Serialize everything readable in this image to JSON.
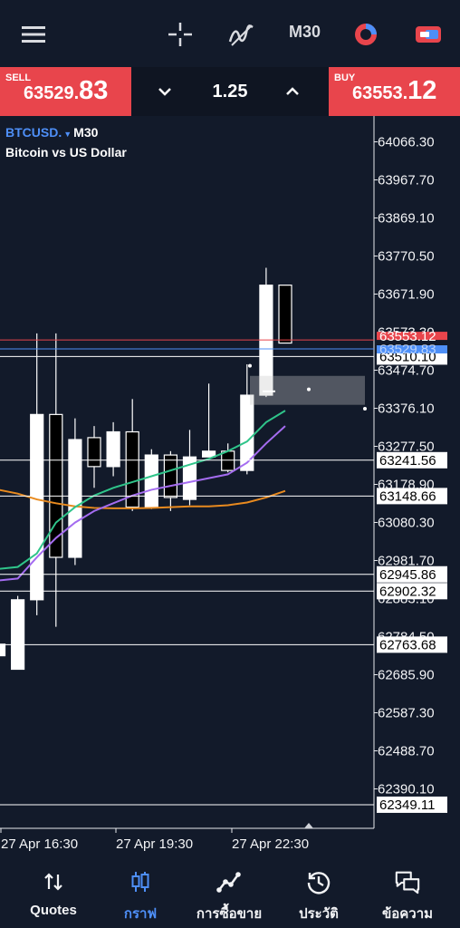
{
  "toolbar": {
    "menu_icon": "hamburger-menu-icon",
    "crosshair_icon": "crosshair-icon",
    "indicator_icon": "indicator-icon",
    "timeframe": "M30",
    "objects_icon": "objects-icon",
    "trade_icon": "trade-icon"
  },
  "trade": {
    "sell_label": "SELL",
    "sell_price_small": "63529.",
    "sell_price_big": "83",
    "buy_label": "BUY",
    "buy_price_small": "63553.",
    "buy_price_big": "12",
    "lot": "1.25"
  },
  "chart": {
    "symbol": "BTCUSD.",
    "timeframe": "M30",
    "description": "Bitcoin vs US Dollar"
  },
  "colors": {
    "background": "#121a2a",
    "sell": "#e8454c",
    "buy": "#e8454c",
    "accent": "#4e8ff7",
    "ma_green": "#2fc48a",
    "ma_purple": "#a46cf0",
    "ma_orange": "#e88a1f",
    "bid_line": "#e8454c",
    "ask_line": "#4e8ff7"
  },
  "chart_data": {
    "type": "candlestick",
    "symbol": "BTCUSD.",
    "timeframe": "M30",
    "ylim": [
      62300,
      64120
    ],
    "price_ticks": [
      "64066.30",
      "63967.70",
      "63869.10",
      "63770.50",
      "63671.90",
      "63474.70",
      "63376.10",
      "63277.50",
      "63178.90",
      "63080.30",
      "62981.70",
      "62685.90",
      "62587.30",
      "62488.70",
      "62390.10"
    ],
    "partially_hidden_ticks": [
      "63573.30",
      "62883.10",
      "62784.50"
    ],
    "time_labels": [
      "27 Apr 16:30",
      "27 Apr 19:30",
      "27 Apr 22:30"
    ],
    "candles": [
      {
        "o": 62735,
        "h": 62775,
        "l": 62700,
        "c": 62765
      },
      {
        "o": 62700,
        "h": 62890,
        "l": 62700,
        "c": 62880
      },
      {
        "o": 62880,
        "h": 63570,
        "l": 62840,
        "c": 63360
      },
      {
        "o": 63360,
        "h": 63570,
        "l": 62810,
        "c": 62990
      },
      {
        "o": 62990,
        "h": 63350,
        "l": 62970,
        "c": 63295
      },
      {
        "o": 63300,
        "h": 63330,
        "l": 63170,
        "c": 63225
      },
      {
        "o": 63225,
        "h": 63340,
        "l": 63200,
        "c": 63315
      },
      {
        "o": 63315,
        "h": 63400,
        "l": 63110,
        "c": 63120
      },
      {
        "o": 63120,
        "h": 63270,
        "l": 63115,
        "c": 63255
      },
      {
        "o": 63255,
        "h": 63265,
        "l": 63110,
        "c": 63145
      },
      {
        "o": 63140,
        "h": 63320,
        "l": 63125,
        "c": 63250
      },
      {
        "o": 63250,
        "h": 63440,
        "l": 63250,
        "c": 63265
      },
      {
        "o": 63265,
        "h": 63285,
        "l": 63210,
        "c": 63215
      },
      {
        "o": 63215,
        "h": 63490,
        "l": 63205,
        "c": 63410
      },
      {
        "o": 63410,
        "h": 63740,
        "l": 63405,
        "c": 63695
      },
      {
        "o": 63695,
        "h": 63695,
        "l": 63545,
        "c": 63545
      }
    ],
    "ma_green": [
      62960,
      62965,
      63000,
      63080,
      63120,
      63150,
      63170,
      63185,
      63200,
      63215,
      63230,
      63245,
      63265,
      63290,
      63340,
      63370
    ],
    "ma_purple": [
      62930,
      62935,
      62990,
      63040,
      63080,
      63110,
      63130,
      63150,
      63165,
      63175,
      63185,
      63195,
      63205,
      63235,
      63285,
      63330
    ],
    "ma_orange": [
      63165,
      63155,
      63140,
      63130,
      63122,
      63118,
      63117,
      63117,
      63118,
      63120,
      63122,
      63122,
      63125,
      63132,
      63145,
      63162
    ],
    "h_lines": [
      {
        "price": "63510.10",
        "value": 63510.1,
        "color": "#ffffff"
      },
      {
        "price": "63241.56",
        "value": 63241.56,
        "color": "#ffffff"
      },
      {
        "price": "63148.66",
        "value": 63148.66,
        "color": "#ffffff"
      },
      {
        "price": "62945.86",
        "value": 62945.86,
        "color": "#ffffff"
      },
      {
        "price": "62902.32",
        "value": 62902.32,
        "color": "#ffffff"
      },
      {
        "price": "62763.68",
        "value": 62763.68,
        "color": "#ffffff"
      },
      {
        "price": "62349.11",
        "value": 62349.11,
        "color": "#ffffff"
      }
    ],
    "ask": {
      "price": "63553.12",
      "value": 63553.12
    },
    "bid": {
      "price": "63529.83",
      "value": 63529.83
    },
    "selection_box": {
      "price_from": 63385,
      "price_to": 63460
    }
  },
  "nav": [
    {
      "label": "Quotes",
      "icon": "quotes-icon"
    },
    {
      "label": "กราฟ",
      "icon": "chart-icon"
    },
    {
      "label": "การซื้อขาย",
      "icon": "trade-icon"
    },
    {
      "label": "ประวัติ",
      "icon": "history-icon"
    },
    {
      "label": "ข้อความ",
      "icon": "messages-icon"
    }
  ]
}
